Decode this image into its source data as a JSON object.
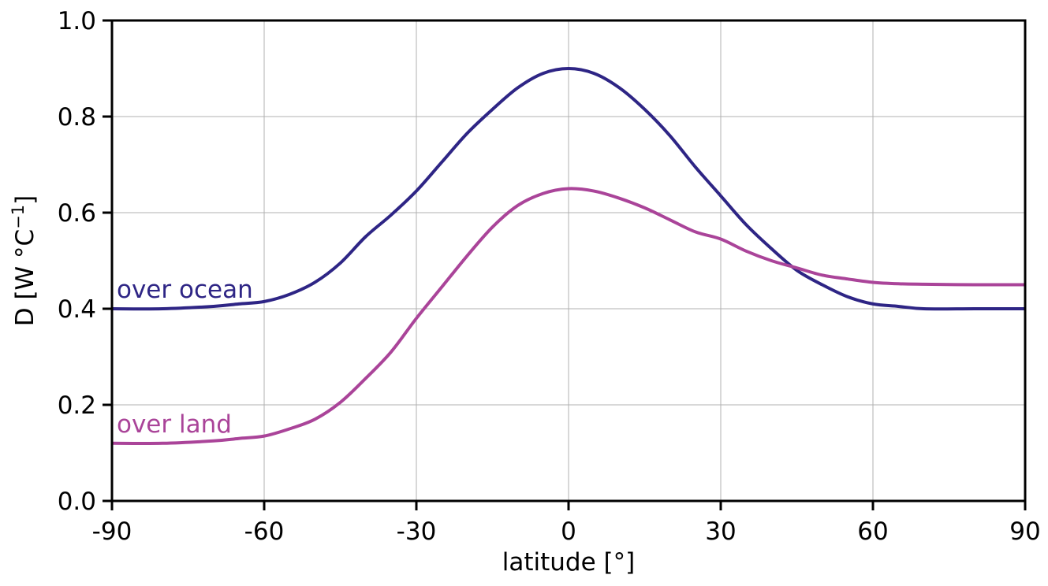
{
  "chart_data": {
    "type": "line",
    "xlabel": "latitude [°]",
    "ylabel": "D [W °C",
    "ylabel_sup": "−1",
    "ylabel_close": "]",
    "xlim": [
      -90,
      90
    ],
    "ylim": [
      0.0,
      1.0
    ],
    "xticks": [
      -90,
      -60,
      -30,
      0,
      30,
      60,
      90
    ],
    "xtick_labels": [
      "-90",
      "-60",
      "-30",
      "0",
      "30",
      "60",
      "90"
    ],
    "yticks": [
      0.0,
      0.2,
      0.4,
      0.6,
      0.8,
      1.0
    ],
    "ytick_labels": [
      "0.0",
      "0.2",
      "0.4",
      "0.6",
      "0.8",
      "1.0"
    ],
    "grid": true,
    "series": [
      {
        "name": "over ocean",
        "color": "#2e2585",
        "x": [
          -90,
          -80,
          -70,
          -65,
          -60,
          -55,
          -50,
          -45,
          -40,
          -35,
          -30,
          -25,
          -20,
          -15,
          -10,
          -5,
          0,
          5,
          10,
          15,
          20,
          25,
          30,
          35,
          40,
          45,
          50,
          55,
          60,
          65,
          70,
          80,
          90
        ],
        "y": [
          0.4,
          0.4,
          0.405,
          0.41,
          0.415,
          0.43,
          0.455,
          0.495,
          0.55,
          0.595,
          0.645,
          0.705,
          0.765,
          0.815,
          0.86,
          0.89,
          0.9,
          0.89,
          0.86,
          0.815,
          0.76,
          0.695,
          0.635,
          0.575,
          0.525,
          0.48,
          0.45,
          0.425,
          0.41,
          0.405,
          0.4,
          0.4,
          0.4
        ]
      },
      {
        "name": "over land",
        "color": "#aa4499",
        "x": [
          -90,
          -80,
          -70,
          -65,
          -60,
          -55,
          -50,
          -45,
          -40,
          -35,
          -30,
          -25,
          -20,
          -15,
          -10,
          -5,
          0,
          5,
          10,
          15,
          20,
          25,
          30,
          35,
          40,
          45,
          50,
          55,
          60,
          65,
          70,
          80,
          90
        ],
        "y": [
          0.12,
          0.12,
          0.125,
          0.13,
          0.135,
          0.15,
          0.17,
          0.205,
          0.255,
          0.31,
          0.38,
          0.445,
          0.51,
          0.57,
          0.615,
          0.64,
          0.65,
          0.645,
          0.63,
          0.61,
          0.585,
          0.56,
          0.545,
          0.52,
          0.5,
          0.485,
          0.47,
          0.462,
          0.455,
          0.452,
          0.451,
          0.45,
          0.45
        ]
      }
    ]
  }
}
